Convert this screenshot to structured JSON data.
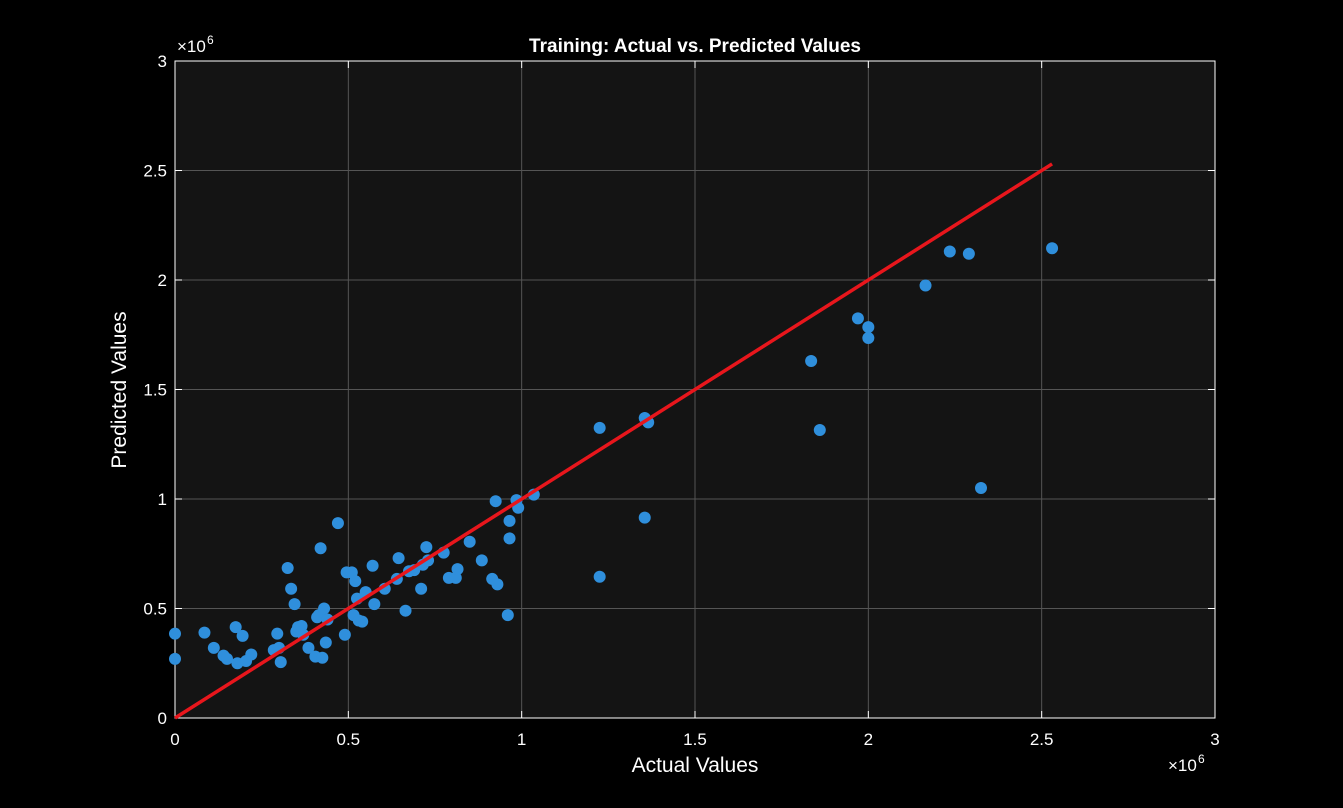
{
  "chart_data": {
    "type": "scatter",
    "title": "Training: Actual vs. Predicted Values",
    "xlabel": "Actual Values",
    "ylabel": "Predicted Values",
    "x_exponent_label": "×10",
    "y_exponent_label": "×10",
    "exponent": "6",
    "xlim": [
      0,
      3
    ],
    "ylim": [
      0,
      3
    ],
    "x_ticks": [
      "0",
      "0.5",
      "1",
      "1.5",
      "2",
      "2.5",
      "3"
    ],
    "y_ticks": [
      "0",
      "0.5",
      "1",
      "1.5",
      "2",
      "2.5",
      "3"
    ],
    "grid": true,
    "colors": {
      "background": "#000000",
      "plot_bg": "#141414",
      "points": "#2f8fdc",
      "fit_line": "#e8161c",
      "grid": "#555555"
    },
    "fit_line": {
      "x": [
        0,
        2.53
      ],
      "y": [
        0,
        2.53
      ]
    },
    "points": [
      [
        0.0,
        0.385
      ],
      [
        0.0,
        0.27
      ],
      [
        0.085,
        0.39
      ],
      [
        0.112,
        0.32
      ],
      [
        0.14,
        0.285
      ],
      [
        0.15,
        0.27
      ],
      [
        0.175,
        0.415
      ],
      [
        0.18,
        0.25
      ],
      [
        0.195,
        0.375
      ],
      [
        0.205,
        0.26
      ],
      [
        0.22,
        0.29
      ],
      [
        0.285,
        0.31
      ],
      [
        0.295,
        0.385
      ],
      [
        0.3,
        0.32
      ],
      [
        0.305,
        0.255
      ],
      [
        0.325,
        0.685
      ],
      [
        0.335,
        0.59
      ],
      [
        0.345,
        0.52
      ],
      [
        0.35,
        0.395
      ],
      [
        0.355,
        0.415
      ],
      [
        0.365,
        0.42
      ],
      [
        0.37,
        0.38
      ],
      [
        0.385,
        0.32
      ],
      [
        0.405,
        0.28
      ],
      [
        0.41,
        0.46
      ],
      [
        0.415,
        0.47
      ],
      [
        0.42,
        0.775
      ],
      [
        0.425,
        0.275
      ],
      [
        0.43,
        0.5
      ],
      [
        0.435,
        0.345
      ],
      [
        0.44,
        0.45
      ],
      [
        0.47,
        0.89
      ],
      [
        0.49,
        0.38
      ],
      [
        0.495,
        0.665
      ],
      [
        0.51,
        0.665
      ],
      [
        0.515,
        0.47
      ],
      [
        0.52,
        0.625
      ],
      [
        0.525,
        0.545
      ],
      [
        0.53,
        0.445
      ],
      [
        0.54,
        0.44
      ],
      [
        0.55,
        0.575
      ],
      [
        0.57,
        0.695
      ],
      [
        0.575,
        0.52
      ],
      [
        0.605,
        0.59
      ],
      [
        0.64,
        0.635
      ],
      [
        0.645,
        0.73
      ],
      [
        0.665,
        0.49
      ],
      [
        0.675,
        0.67
      ],
      [
        0.69,
        0.675
      ],
      [
        0.71,
        0.59
      ],
      [
        0.715,
        0.7
      ],
      [
        0.725,
        0.78
      ],
      [
        0.73,
        0.72
      ],
      [
        0.775,
        0.755
      ],
      [
        0.79,
        0.64
      ],
      [
        0.81,
        0.64
      ],
      [
        0.815,
        0.68
      ],
      [
        0.85,
        0.805
      ],
      [
        0.885,
        0.72
      ],
      [
        0.915,
        0.635
      ],
      [
        0.925,
        0.99
      ],
      [
        0.93,
        0.61
      ],
      [
        0.96,
        0.47
      ],
      [
        0.965,
        0.9
      ],
      [
        0.965,
        0.82
      ],
      [
        0.985,
        0.995
      ],
      [
        0.99,
        0.96
      ],
      [
        1.035,
        1.02
      ],
      [
        1.225,
        1.325
      ],
      [
        1.225,
        0.645
      ],
      [
        1.355,
        1.37
      ],
      [
        1.355,
        0.915
      ],
      [
        1.365,
        1.35
      ],
      [
        1.835,
        1.63
      ],
      [
        1.86,
        1.315
      ],
      [
        1.97,
        1.825
      ],
      [
        2.0,
        1.785
      ],
      [
        2.0,
        1.735
      ],
      [
        2.165,
        1.975
      ],
      [
        2.235,
        2.13
      ],
      [
        2.29,
        2.12
      ],
      [
        2.325,
        1.05
      ],
      [
        2.53,
        2.145
      ]
    ]
  }
}
